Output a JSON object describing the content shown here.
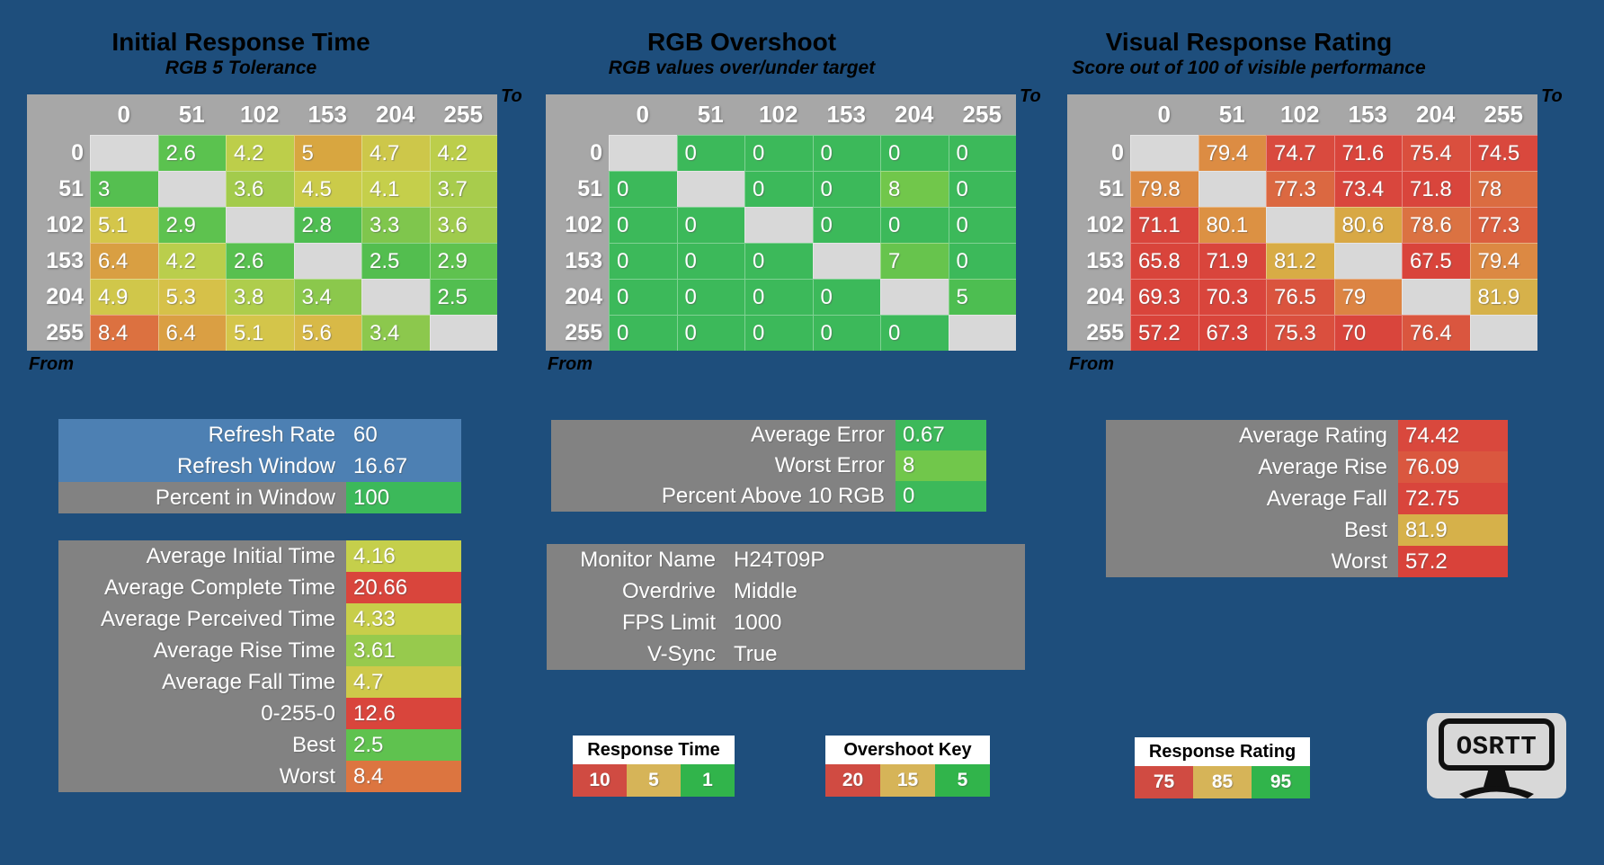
{
  "page": {
    "background": "#1E4E7C",
    "header_gray": "#A7A7A7",
    "diagonal_gray": "#D8D8D8",
    "box_gray": "#828282",
    "box_blue": "#4D80B3"
  },
  "chart_data": [
    {
      "type": "heatmap",
      "title": "Initial Response Time",
      "subtitle": "RGB 5 Tolerance",
      "axis_to_label": "To",
      "axis_from_label": "From",
      "columns": [
        "0",
        "51",
        "102",
        "153",
        "204",
        "255"
      ],
      "rows": [
        "0",
        "51",
        "102",
        "153",
        "204",
        "255"
      ],
      "values": [
        [
          null,
          2.6,
          4.2,
          5,
          4.7,
          4.2
        ],
        [
          3,
          null,
          3.6,
          4.5,
          4.1,
          3.7
        ],
        [
          5.1,
          2.9,
          null,
          2.8,
          3.3,
          3.6
        ],
        [
          6.4,
          4.2,
          2.6,
          null,
          2.5,
          2.9
        ],
        [
          4.9,
          5.3,
          3.8,
          3.4,
          null,
          2.5
        ],
        [
          8.4,
          6.4,
          5.1,
          5.6,
          3.4,
          null
        ]
      ],
      "colors": [
        [
          "#D8D8D8",
          "#5BC24F",
          "#BDCE4A",
          "#D8A640",
          "#CDC74A",
          "#BCCE4B"
        ],
        [
          "#55BF50",
          "#D8D8D8",
          "#A3CB4C",
          "#CBCB49",
          "#C5CF4B",
          "#A8CC4C"
        ],
        [
          "#D4C64A",
          "#5EC24F",
          "#D8D8D8",
          "#4EBD51",
          "#7FC64D",
          "#9FCB4D"
        ],
        [
          "#D99F42",
          "#BACE4C",
          "#58C04F",
          "#D8D8D8",
          "#53BE4F",
          "#5FC24F"
        ],
        [
          "#D0C74A",
          "#D6C149",
          "#AECD4C",
          "#8BC84C",
          "#D8D8D8",
          "#52BE50"
        ],
        [
          "#DC7140",
          "#DA9F43",
          "#D4C54A",
          "#D8B947",
          "#8CC84D",
          "#D8D8D8"
        ]
      ]
    },
    {
      "type": "heatmap",
      "title": "RGB Overshoot",
      "subtitle": "RGB values over/under target",
      "axis_to_label": "To",
      "axis_from_label": "From",
      "columns": [
        "0",
        "51",
        "102",
        "153",
        "204",
        "255"
      ],
      "rows": [
        "0",
        "51",
        "102",
        "153",
        "204",
        "255"
      ],
      "values": [
        [
          null,
          0,
          0,
          0,
          0,
          0
        ],
        [
          0,
          null,
          0,
          0,
          8,
          0
        ],
        [
          0,
          0,
          null,
          0,
          0,
          0
        ],
        [
          0,
          0,
          0,
          null,
          7,
          0
        ],
        [
          0,
          0,
          0,
          0,
          null,
          5
        ],
        [
          0,
          0,
          0,
          0,
          0,
          null
        ]
      ],
      "colors": [
        [
          "#D8D8D8",
          "#3CB95A",
          "#3CB95A",
          "#3CB95A",
          "#3CB95A",
          "#3CB95A"
        ],
        [
          "#3CB95A",
          "#D8D8D8",
          "#3CB95A",
          "#3CB95A",
          "#71C74B",
          "#3CB95A"
        ],
        [
          "#3CB95A",
          "#3CB95A",
          "#D8D8D8",
          "#3CB95A",
          "#3CB95A",
          "#3CB95A"
        ],
        [
          "#3CB95A",
          "#3CB95A",
          "#3CB95A",
          "#D8D8D8",
          "#67C44D",
          "#3CB95A"
        ],
        [
          "#3CB95A",
          "#3CB95A",
          "#3CB95A",
          "#3CB95A",
          "#D8D8D8",
          "#4DBE51"
        ],
        [
          "#3CB95A",
          "#3CB95A",
          "#3CB95A",
          "#3CB95A",
          "#3CB95A",
          "#D8D8D8"
        ]
      ]
    },
    {
      "type": "heatmap",
      "title": "Visual Response Rating",
      "subtitle": "Score out of 100 of visible performance",
      "axis_to_label": "To",
      "axis_from_label": "From",
      "columns": [
        "0",
        "51",
        "102",
        "153",
        "204",
        "255"
      ],
      "rows": [
        "0",
        "51",
        "102",
        "153",
        "204",
        "255"
      ],
      "values": [
        [
          null,
          79.4,
          74.7,
          71.6,
          75.4,
          74.5
        ],
        [
          79.8,
          null,
          77.3,
          73.4,
          71.8,
          78
        ],
        [
          71.1,
          80.1,
          null,
          80.6,
          78.6,
          77.3
        ],
        [
          65.8,
          71.9,
          81.2,
          null,
          67.5,
          79.4
        ],
        [
          69.3,
          70.3,
          76.5,
          79,
          null,
          81.9
        ],
        [
          57.2,
          67.3,
          75.3,
          70,
          76.4,
          null
        ]
      ],
      "colors": [
        [
          "#D8D8D8",
          "#DC8C43",
          "#D94A3E",
          "#D9453C",
          "#DA4F3E",
          "#D9483D"
        ],
        [
          "#DC8A42",
          "#D8D8D8",
          "#DB6841",
          "#D9463D",
          "#D9453C",
          "#DB6C41"
        ],
        [
          "#D9453C",
          "#DC9143",
          "#D8D8D8",
          "#D8A845",
          "#DB7242",
          "#DB5F3F"
        ],
        [
          "#D9443B",
          "#D9453C",
          "#D8AC45",
          "#D8D8D8",
          "#D9443B",
          "#DC8943"
        ],
        [
          "#D9443B",
          "#D9453C",
          "#DA543E",
          "#DC8443",
          "#D8D8D8",
          "#D6B14A"
        ],
        [
          "#D9423A",
          "#D9443B",
          "#DA4F3E",
          "#D9453C",
          "#DA563F",
          "#D8D8D8"
        ]
      ]
    }
  ],
  "summary_boxes": {
    "refresh": {
      "rows": [
        {
          "label": "Refresh Rate",
          "value": "60",
          "label_bg": "#4D80B3",
          "value_bg": "#4D80B3"
        },
        {
          "label": "Refresh Window",
          "value": "16.67",
          "label_bg": "#4D80B3",
          "value_bg": "#4D80B3"
        },
        {
          "label": "Percent in Window",
          "value": "100",
          "label_bg": "#828282",
          "value_bg": "#3CB95A"
        }
      ]
    },
    "times": {
      "rows": [
        {
          "label": "Average Initial Time",
          "value": "4.16",
          "label_bg": "#828282",
          "value_bg": "#C5CF4B"
        },
        {
          "label": "Average Complete Time",
          "value": "20.66",
          "label_bg": "#828282",
          "value_bg": "#D9453C"
        },
        {
          "label": "Average Perceived Time",
          "value": "4.33",
          "label_bg": "#828282",
          "value_bg": "#C8CE4A"
        },
        {
          "label": "Average Rise Time",
          "value": "3.61",
          "label_bg": "#828282",
          "value_bg": "#97CA4D"
        },
        {
          "label": "Average Fall Time",
          "value": "4.7",
          "label_bg": "#828282",
          "value_bg": "#CEC94A"
        },
        {
          "label": "0-255-0",
          "value": "12.6",
          "label_bg": "#828282",
          "value_bg": "#D9453C"
        },
        {
          "label": "Best",
          "value": "2.5",
          "label_bg": "#828282",
          "value_bg": "#5FC24F"
        },
        {
          "label": "Worst",
          "value": "8.4",
          "label_bg": "#828282",
          "value_bg": "#DC7540"
        }
      ]
    },
    "error": {
      "rows": [
        {
          "label": "Average Error",
          "value": "0.67",
          "label_bg": "#828282",
          "value_bg": "#3CB95A"
        },
        {
          "label": "Worst Error",
          "value": "8",
          "label_bg": "#828282",
          "value_bg": "#71C74B"
        },
        {
          "label": "Percent Above 10 RGB",
          "value": "0",
          "label_bg": "#828282",
          "value_bg": "#3CB95A"
        }
      ]
    },
    "monitor": {
      "rows": [
        {
          "label": "Monitor Name",
          "value": "H24T09P",
          "label_bg": "#828282",
          "value_bg": "#828282"
        },
        {
          "label": "Overdrive",
          "value": "Middle",
          "label_bg": "#828282",
          "value_bg": "#828282"
        },
        {
          "label": "FPS Limit",
          "value": "1000",
          "label_bg": "#828282",
          "value_bg": "#828282"
        },
        {
          "label": "V-Sync",
          "value": "True",
          "label_bg": "#828282",
          "value_bg": "#828282"
        }
      ]
    },
    "rating": {
      "rows": [
        {
          "label": "Average Rating",
          "value": "74.42",
          "label_bg": "#828282",
          "value_bg": "#D9483D"
        },
        {
          "label": "Average Rise",
          "value": "76.09",
          "label_bg": "#828282",
          "value_bg": "#DA573F"
        },
        {
          "label": "Average Fall",
          "value": "72.75",
          "label_bg": "#828282",
          "value_bg": "#D9453C"
        },
        {
          "label": "Best",
          "value": "81.9",
          "label_bg": "#828282",
          "value_bg": "#D6B14A"
        },
        {
          "label": "Worst",
          "value": "57.2",
          "label_bg": "#828282",
          "value_bg": "#D9423A"
        }
      ]
    }
  },
  "keys": [
    {
      "title": "Response Time Key",
      "cells": [
        {
          "value": "10",
          "color": "#D04B42"
        },
        {
          "value": "5",
          "color": "#D6B458"
        },
        {
          "value": "1",
          "color": "#31B44B"
        }
      ]
    },
    {
      "title": "Overshoot Key",
      "cells": [
        {
          "value": "20",
          "color": "#D04B42"
        },
        {
          "value": "15",
          "color": "#D6B458"
        },
        {
          "value": "5",
          "color": "#31B44B"
        }
      ]
    },
    {
      "title": "Response Rating Key",
      "cells": [
        {
          "value": "75",
          "color": "#D04B42"
        },
        {
          "value": "85",
          "color": "#D6B458"
        },
        {
          "value": "95",
          "color": "#31B44B"
        }
      ]
    }
  ],
  "logo": {
    "text": "OSRTT"
  }
}
